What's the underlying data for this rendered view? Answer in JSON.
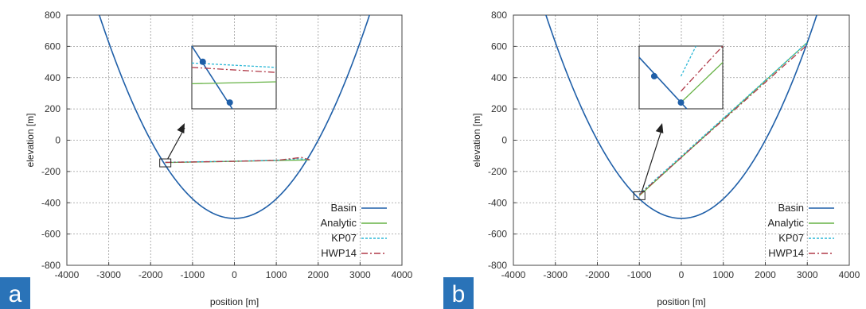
{
  "chart_data": [
    {
      "type": "line",
      "panel_label": "a",
      "xlabel": "position [m]",
      "ylabel": "elevation [m]",
      "xlim": [
        -4000,
        4000
      ],
      "ylim": [
        -800,
        800
      ],
      "xticks": [
        -4000,
        -3000,
        -2000,
        -1000,
        0,
        1000,
        2000,
        3000,
        4000
      ],
      "yticks": [
        -800,
        -600,
        -400,
        -200,
        0,
        200,
        400,
        600,
        800
      ],
      "grid": true,
      "legend_position": "bottom-right",
      "basin": {
        "name": "Basin",
        "color": "#1f5fa8",
        "min_elevation": -500,
        "half_width_at_zero": 2000,
        "dash": ""
      },
      "series": [
        {
          "name": "Analytic",
          "color": "#66b245",
          "dash": "",
          "x": [
            -1650,
            0,
            1000,
            1800
          ],
          "y": [
            -143,
            -135,
            -130,
            -126
          ]
        },
        {
          "name": "KP07",
          "color": "#2bb7d6",
          "dash": "3,2",
          "x": [
            -1650,
            0,
            1000,
            1550,
            1800
          ],
          "y": [
            -141,
            -134,
            -128,
            -118,
            -126
          ]
        },
        {
          "name": "HWP14",
          "color": "#b03a48",
          "dash": "8,3,2,3",
          "x": [
            -1650,
            0,
            1000,
            1600,
            1800
          ],
          "y": [
            -142,
            -135,
            -129,
            -110,
            -126
          ]
        }
      ],
      "inset": {
        "basin_points": {
          "x": [
            0.0,
            0.48
          ],
          "y": [
            0.0,
            1.0
          ]
        },
        "basin_markers": {
          "x": [
            0.13,
            0.45
          ],
          "y": [
            0.25,
            0.9
          ]
        },
        "series": [
          {
            "name": "Analytic",
            "x": [
              0.0,
              1.0
            ],
            "y": [
              0.6,
              0.57
            ]
          },
          {
            "name": "KP07",
            "x": [
              0.0,
              1.0
            ],
            "y": [
              0.27,
              0.34
            ]
          },
          {
            "name": "HWP14",
            "x": [
              0.0,
              1.0
            ],
            "y": [
              0.34,
              0.42
            ]
          }
        ]
      }
    },
    {
      "type": "line",
      "panel_label": "b",
      "xlabel": "position [m]",
      "ylabel": "elevation [m]",
      "xlim": [
        -4000,
        4000
      ],
      "ylim": [
        -800,
        800
      ],
      "xticks": [
        -4000,
        -3000,
        -2000,
        -1000,
        0,
        1000,
        2000,
        3000,
        4000
      ],
      "yticks": [
        -800,
        -600,
        -400,
        -200,
        0,
        200,
        400,
        600,
        800
      ],
      "grid": true,
      "legend_position": "bottom-right",
      "basin": {
        "name": "Basin",
        "color": "#1f5fa8",
        "min_elevation": -500,
        "half_width_at_zero": 2000,
        "dash": ""
      },
      "series": [
        {
          "name": "Analytic",
          "color": "#66b245",
          "dash": "",
          "x": [
            -1000,
            3000
          ],
          "y": [
            -355,
            625
          ]
        },
        {
          "name": "KP07",
          "color": "#2bb7d6",
          "dash": "3,2",
          "x": [
            -1000,
            3000
          ],
          "y": [
            -345,
            625
          ]
        },
        {
          "name": "HWP14",
          "color": "#b03a48",
          "dash": "8,3,2,3",
          "x": [
            -1000,
            3000
          ],
          "y": [
            -350,
            610
          ]
        }
      ],
      "inset": {
        "basin_points": {
          "x": [
            0.0,
            0.57
          ],
          "y": [
            0.18,
            1.0
          ]
        },
        "basin_markers": {
          "x": [
            0.18,
            0.5
          ],
          "y": [
            0.48,
            0.9
          ]
        },
        "series": [
          {
            "name": "Analytic",
            "x": [
              0.5,
              1.0
            ],
            "y": [
              0.9,
              0.26
            ]
          },
          {
            "name": "KP07",
            "x": [
              0.5,
              0.68
            ],
            "y": [
              0.48,
              0.0
            ]
          },
          {
            "name": "HWP14",
            "x": [
              0.5,
              1.0
            ],
            "y": [
              0.72,
              0.0
            ]
          }
        ]
      }
    }
  ]
}
